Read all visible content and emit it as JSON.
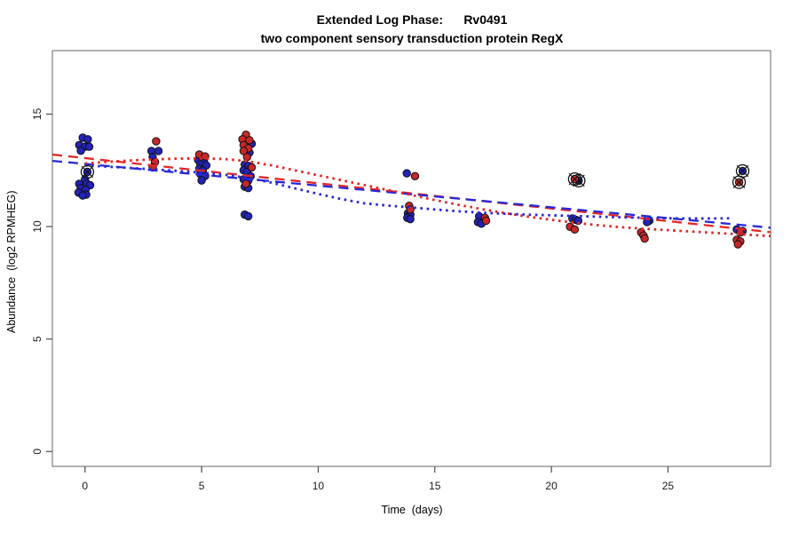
{
  "chart_data": {
    "type": "scatter",
    "title": "Extended Log Phase:      Rv0491",
    "subtitle": "two component sensory transduction protein RegX",
    "xlabel": "Time  (days)",
    "ylabel": "Abundance  (log2 RPMHEG)",
    "xlim": [
      -1.4,
      29.4
    ],
    "ylim": [
      -0.66,
      17.82
    ],
    "x_ticks": [
      0,
      5,
      10,
      15,
      20,
      25
    ],
    "y_ticks": [
      0,
      5,
      10,
      15
    ],
    "grid": false,
    "legend": "none",
    "point_stroke": "#101010",
    "series": [
      {
        "name": "blue",
        "label": "condition A replicates (blue)",
        "color": "#2323b8",
        "marker": "dot",
        "points": [
          [
            -0.1,
            13.95
          ],
          [
            0.12,
            13.88
          ],
          [
            -0.25,
            13.62
          ],
          [
            0.0,
            13.55
          ],
          [
            0.18,
            13.55
          ],
          [
            -0.18,
            13.37
          ],
          [
            0.0,
            12.1
          ],
          [
            -0.25,
            11.9
          ],
          [
            0.08,
            11.9
          ],
          [
            0.22,
            11.84
          ],
          [
            -0.18,
            11.71
          ],
          [
            0.02,
            11.64
          ],
          [
            -0.28,
            11.51
          ],
          [
            0.05,
            11.42
          ],
          [
            -0.1,
            11.38
          ],
          [
            2.85,
            13.36
          ],
          [
            3.15,
            13.36
          ],
          [
            2.9,
            13.09
          ],
          [
            4.85,
            12.96
          ],
          [
            5.1,
            12.96
          ],
          [
            4.95,
            12.76
          ],
          [
            5.2,
            12.72
          ],
          [
            4.9,
            12.57
          ],
          [
            5.05,
            12.49
          ],
          [
            4.95,
            12.33
          ],
          [
            5.15,
            12.25
          ],
          [
            5.0,
            12.05
          ],
          [
            7.15,
            13.68
          ],
          [
            7.05,
            13.29
          ],
          [
            6.85,
            12.76
          ],
          [
            7.0,
            12.7
          ],
          [
            6.8,
            12.5
          ],
          [
            6.95,
            12.43
          ],
          [
            7.1,
            12.24
          ],
          [
            6.8,
            12.1
          ],
          [
            7.0,
            12.04
          ],
          [
            6.85,
            11.77
          ],
          [
            7.0,
            11.71
          ],
          [
            6.85,
            10.53
          ],
          [
            7.0,
            10.46
          ],
          [
            13.8,
            12.37
          ],
          [
            13.85,
            10.59
          ],
          [
            13.95,
            10.53
          ],
          [
            13.82,
            10.39
          ],
          [
            13.95,
            10.33
          ],
          [
            16.9,
            10.46
          ],
          [
            16.85,
            10.2
          ],
          [
            17.0,
            10.13
          ],
          [
            20.9,
            10.36
          ],
          [
            21.05,
            10.3
          ],
          [
            21.15,
            10.26
          ],
          [
            24.2,
            10.26
          ],
          [
            24.1,
            10.2
          ],
          [
            27.95,
            9.87
          ],
          [
            28.2,
            9.8
          ]
        ]
      },
      {
        "name": "red",
        "label": "condition B replicates (red)",
        "color": "#c62828",
        "marker": "dot",
        "points": [
          [
            3.05,
            13.79
          ],
          [
            3.0,
            12.87
          ],
          [
            2.9,
            12.63
          ],
          [
            4.9,
            13.2
          ],
          [
            5.15,
            13.12
          ],
          [
            6.9,
            14.08
          ],
          [
            6.75,
            13.88
          ],
          [
            7.05,
            13.84
          ],
          [
            6.8,
            13.62
          ],
          [
            7.0,
            13.48
          ],
          [
            6.8,
            13.36
          ],
          [
            6.95,
            13.09
          ],
          [
            7.15,
            12.63
          ],
          [
            6.9,
            11.9
          ],
          [
            14.15,
            12.24
          ],
          [
            13.9,
            10.92
          ],
          [
            13.95,
            10.76
          ],
          [
            17.15,
            10.39
          ],
          [
            17.2,
            10.26
          ],
          [
            20.8,
            9.99
          ],
          [
            21.0,
            9.87
          ],
          [
            23.85,
            9.74
          ],
          [
            23.95,
            9.6
          ],
          [
            24.0,
            9.47
          ],
          [
            28.1,
            9.74
          ],
          [
            27.95,
            9.41
          ],
          [
            28.1,
            9.34
          ],
          [
            28.0,
            9.21
          ]
        ]
      },
      {
        "name": "blue-circled",
        "label": "flagged outlier points (blue, circle-cross mark)",
        "color": "#2323b8",
        "marker": "circled",
        "points": [
          [
            0.1,
            12.43
          ],
          [
            21.17,
            12.04
          ],
          [
            28.2,
            12.47
          ]
        ]
      },
      {
        "name": "red-circled",
        "label": "flagged outlier points (red, circle-cross mark)",
        "color": "#c62828",
        "marker": "circled",
        "points": [
          [
            21.0,
            12.11
          ],
          [
            28.05,
            11.97
          ]
        ]
      }
    ],
    "lines": [
      {
        "name": "red-dashed-trend",
        "label": "red linear fit (dashed)",
        "color": "#e62626",
        "style": "dashed",
        "points": [
          [
            -1.4,
            13.2
          ],
          [
            29.4,
            9.75
          ]
        ]
      },
      {
        "name": "blue-dashed-trend",
        "label": "blue linear fit (dashed)",
        "color": "#2828d8",
        "style": "dashed",
        "points": [
          [
            -1.4,
            12.92
          ],
          [
            29.4,
            9.95
          ]
        ]
      },
      {
        "name": "red-dotted-smooth",
        "label": "red loess smooth (dotted)",
        "color": "#e62626",
        "style": "dotted",
        "points": [
          [
            0,
            12.8
          ],
          [
            1,
            12.88
          ],
          [
            2,
            12.94
          ],
          [
            3,
            12.99
          ],
          [
            4,
            13.02
          ],
          [
            5,
            13.03
          ],
          [
            6,
            13.0
          ],
          [
            7,
            12.9
          ],
          [
            8,
            12.72
          ],
          [
            9,
            12.5
          ],
          [
            10,
            12.28
          ],
          [
            11,
            12.06
          ],
          [
            12,
            11.84
          ],
          [
            13,
            11.62
          ],
          [
            14,
            11.4
          ],
          [
            15,
            11.18
          ],
          [
            16,
            10.97
          ],
          [
            17,
            10.78
          ],
          [
            18,
            10.6
          ],
          [
            19,
            10.44
          ],
          [
            20,
            10.3
          ],
          [
            21,
            10.17
          ],
          [
            22,
            10.06
          ],
          [
            23,
            9.97
          ],
          [
            24,
            9.9
          ],
          [
            25,
            9.84
          ],
          [
            26,
            9.78
          ],
          [
            27,
            9.72
          ],
          [
            28,
            9.66
          ],
          [
            29.4,
            9.58
          ]
        ]
      },
      {
        "name": "blue-dotted-smooth",
        "label": "blue loess smooth (dotted)",
        "color": "#2828d8",
        "style": "dotted",
        "points": [
          [
            0,
            12.72
          ],
          [
            1,
            12.66
          ],
          [
            2,
            12.6
          ],
          [
            3,
            12.54
          ],
          [
            4,
            12.47
          ],
          [
            5,
            12.4
          ],
          [
            6,
            12.3
          ],
          [
            7,
            12.16
          ],
          [
            8,
            11.95
          ],
          [
            9,
            11.7
          ],
          [
            10,
            11.45
          ],
          [
            11,
            11.22
          ],
          [
            12,
            11.03
          ],
          [
            13,
            10.93
          ],
          [
            14,
            10.85
          ],
          [
            15,
            10.76
          ],
          [
            16,
            10.68
          ],
          [
            17,
            10.62
          ],
          [
            18,
            10.57
          ],
          [
            19,
            10.53
          ],
          [
            20,
            10.5
          ],
          [
            21,
            10.47
          ],
          [
            22,
            10.44
          ],
          [
            23,
            10.41
          ],
          [
            24,
            10.39
          ],
          [
            25,
            10.37
          ],
          [
            26,
            10.36
          ],
          [
            27,
            10.36
          ],
          [
            27.8,
            10.37
          ]
        ]
      }
    ],
    "frame_color": "#8a8a8a",
    "tick_color": "#4d4d4d"
  }
}
